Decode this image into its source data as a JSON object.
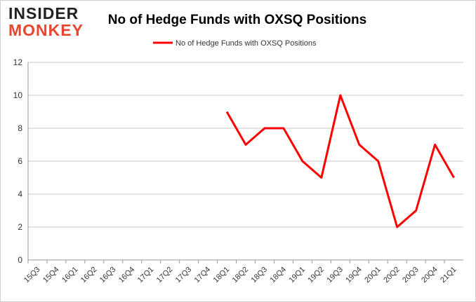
{
  "logo": {
    "line1": "INSIDER",
    "line2": "MONKEY"
  },
  "chart_data": {
    "type": "line",
    "title": "No of Hedge Funds with OXSQ Positions",
    "categories": [
      "15Q3",
      "15Q4",
      "16Q1",
      "16Q2",
      "16Q3",
      "16Q4",
      "17Q1",
      "17Q2",
      "17Q3",
      "17Q4",
      "18Q1",
      "18Q2",
      "18Q3",
      "18Q4",
      "19Q1",
      "19Q2",
      "19Q3",
      "19Q4",
      "20Q1",
      "20Q2",
      "20Q3",
      "20Q4",
      "21Q1"
    ],
    "series": [
      {
        "name": "No of Hedge Funds with OXSQ Positions",
        "color": "#ff0000",
        "values": [
          null,
          null,
          null,
          null,
          null,
          null,
          null,
          null,
          null,
          null,
          9,
          7,
          8,
          8,
          6,
          5,
          10,
          7,
          6,
          2,
          3,
          7,
          5
        ]
      }
    ],
    "ylim": [
      0,
      12
    ],
    "yticks": [
      0,
      2,
      4,
      6,
      8,
      10,
      12
    ],
    "grid": true,
    "legend": "top"
  }
}
